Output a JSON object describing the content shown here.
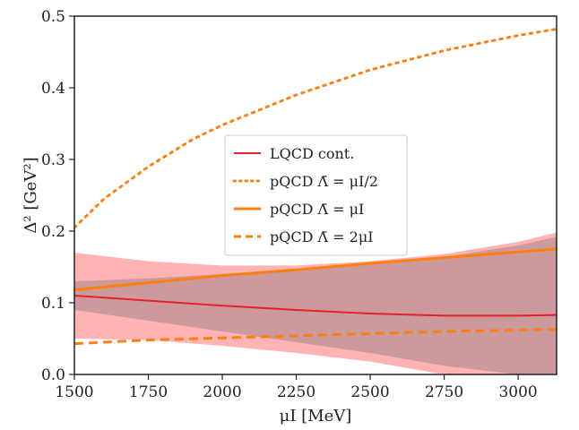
{
  "chart_data": {
    "type": "line",
    "xlabel": "μI [MeV]",
    "ylabel": "Δ² [GeV²]",
    "xlim": [
      1500,
      3130
    ],
    "ylim": [
      0,
      0.5
    ],
    "xticks": [
      "1500",
      "1750",
      "2000",
      "2250",
      "2500",
      "2750",
      "3000"
    ],
    "yticks": [
      "0.0",
      "0.1",
      "0.2",
      "0.3",
      "0.4",
      "0.5"
    ],
    "grid": false,
    "legend_position": "center",
    "series": [
      {
        "name": "LQCD cont.",
        "style": "solid",
        "color": "#e8202a",
        "x": [
          1500,
          1750,
          2000,
          2250,
          2500,
          2750,
          3000,
          3130
        ],
        "y": [
          0.11,
          0.103,
          0.096,
          0.09,
          0.085,
          0.082,
          0.082,
          0.083
        ],
        "band_outer_upper": [
          0.17,
          0.158,
          0.152,
          0.152,
          0.158,
          0.168,
          0.185,
          0.198
        ],
        "band_outer_lower": [
          0.05,
          0.048,
          0.04,
          0.03,
          0.018,
          0.0,
          0.0,
          0.0
        ],
        "band_inner_upper": [
          0.13,
          0.134,
          0.14,
          0.147,
          0.155,
          0.164,
          0.18,
          0.192
        ],
        "band_inner_lower": [
          0.09,
          0.075,
          0.06,
          0.045,
          0.03,
          0.012,
          0.0,
          0.0
        ]
      },
      {
        "name": "pQCD Λ̄ = μI/2",
        "style": "dotted",
        "color": "#ff7f0e",
        "x": [
          1500,
          1600,
          1750,
          1900,
          2000,
          2250,
          2500,
          2750,
          3000,
          3130
        ],
        "y": [
          0.205,
          0.245,
          0.29,
          0.328,
          0.348,
          0.39,
          0.425,
          0.452,
          0.473,
          0.482
        ]
      },
      {
        "name": "pQCD Λ̄ = μI",
        "style": "solid",
        "color": "#ff7f0e",
        "x": [
          1500,
          1750,
          2000,
          2250,
          2500,
          2750,
          3000,
          3130
        ],
        "y": [
          0.118,
          0.128,
          0.138,
          0.146,
          0.155,
          0.163,
          0.171,
          0.175
        ]
      },
      {
        "name": "pQCD Λ̄ = 2μI",
        "style": "dashed",
        "color": "#ff7f0e",
        "x": [
          1500,
          1750,
          2000,
          2250,
          2500,
          2750,
          3000,
          3130
        ],
        "y": [
          0.043,
          0.048,
          0.051,
          0.054,
          0.057,
          0.06,
          0.062,
          0.063
        ]
      }
    ]
  }
}
